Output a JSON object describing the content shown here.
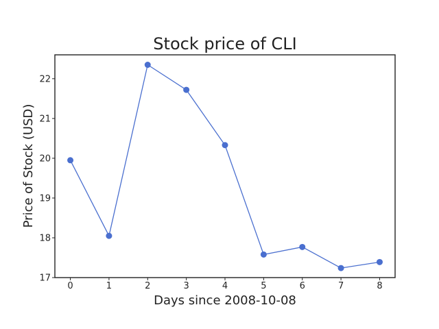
{
  "chart_data": {
    "type": "line",
    "title": "Stock price of CLI",
    "xlabel": "Days since 2008-10-08",
    "ylabel": "Price of Stock (USD)",
    "x": [
      0,
      1,
      2,
      3,
      4,
      5,
      6,
      7,
      8
    ],
    "x_tick_labels": [
      "0",
      "1",
      "2",
      "3",
      "4",
      "5",
      "6",
      "7",
      "8"
    ],
    "y_tick_labels": [
      "17",
      "18",
      "19",
      "20",
      "21",
      "22"
    ],
    "y_ticks": [
      17,
      18,
      19,
      20,
      21,
      22
    ],
    "series": [
      {
        "values": [
          19.95,
          18.05,
          22.35,
          21.72,
          20.33,
          17.58,
          17.77,
          17.24,
          17.39
        ],
        "color": "#4a6fcf"
      }
    ],
    "xlim": [
      -0.4,
      8.4
    ],
    "ylim": [
      17,
      22.6
    ],
    "grid": false,
    "legend": "none"
  }
}
